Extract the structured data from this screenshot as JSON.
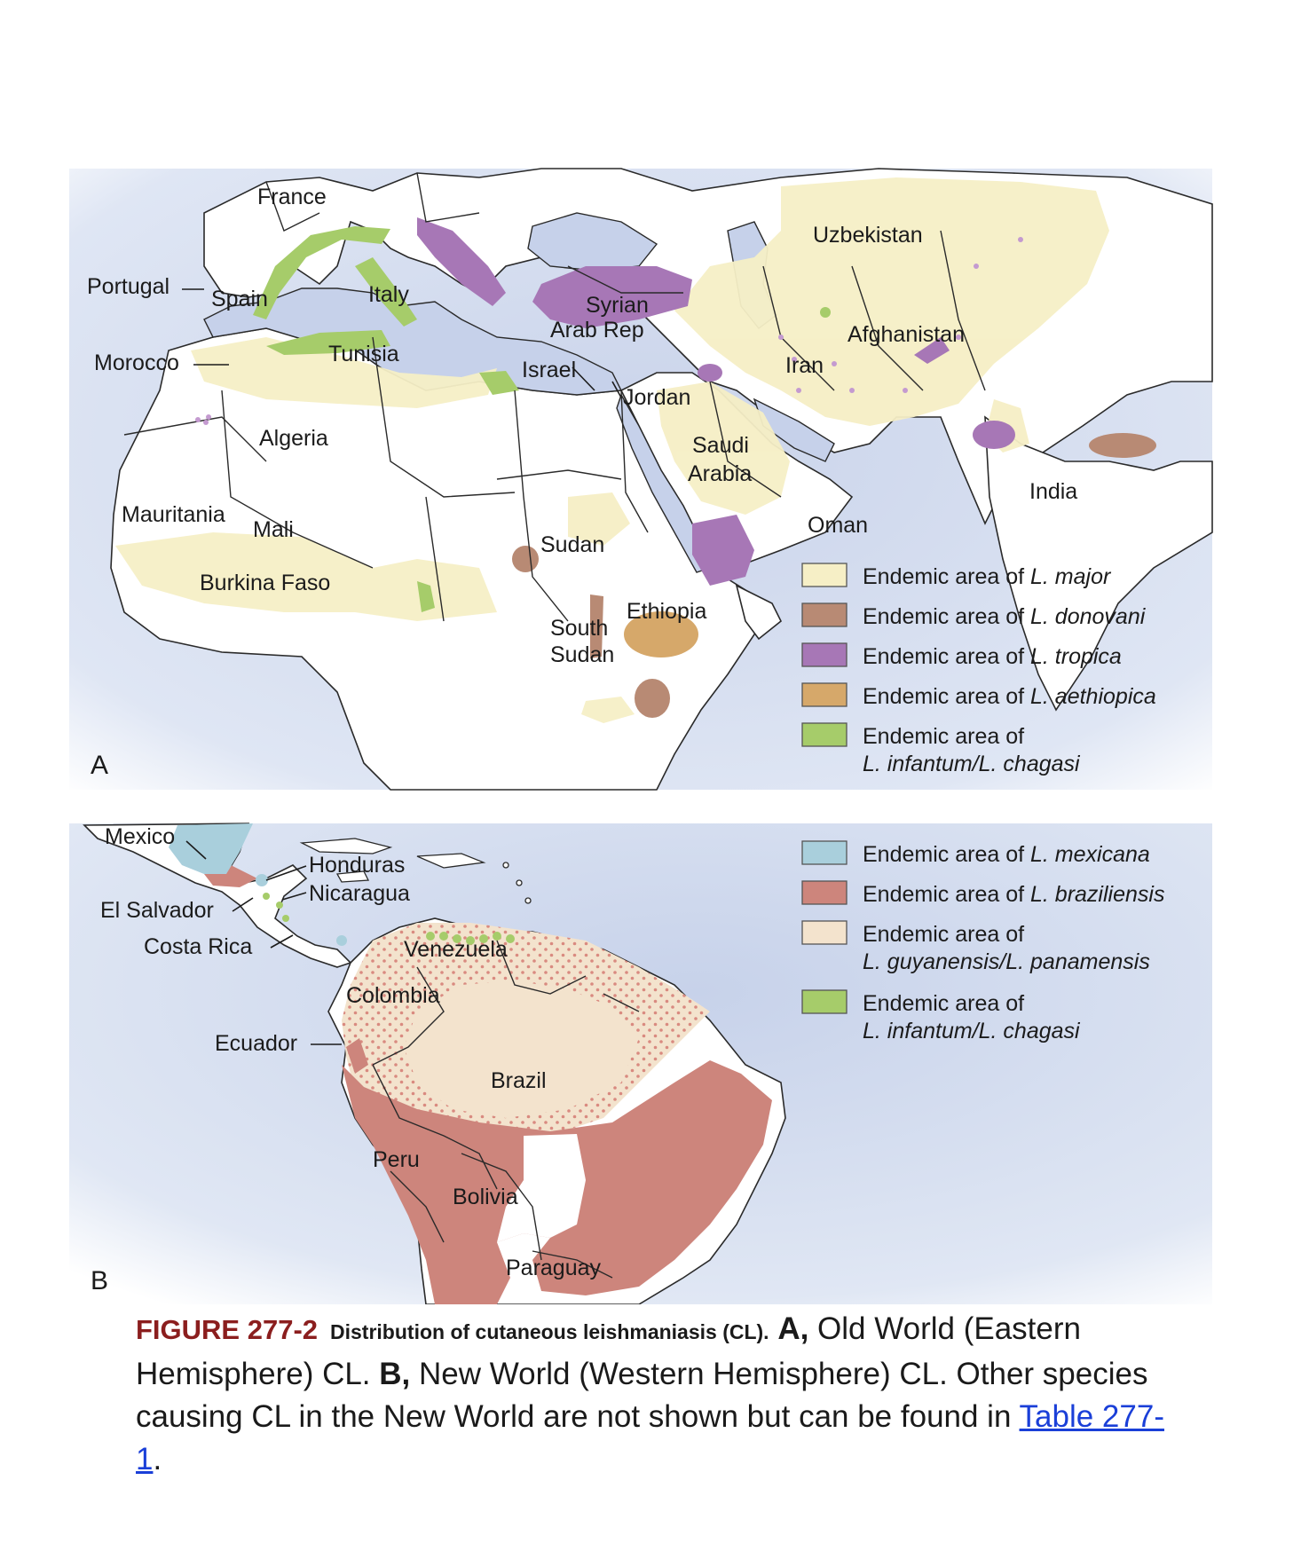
{
  "panel_a": {
    "letter": "A",
    "countries": [
      "France",
      "Portugal",
      "Spain",
      "Italy",
      "Morocco",
      "Tunisia",
      "Algeria",
      "Mauritania",
      "Mali",
      "Burkina Faso",
      "Sudan",
      "South Sudan",
      "Ethiopia",
      "Israel",
      "Jordan",
      "Syrian Arab Rep",
      "Saudi Arabia",
      "Oman",
      "Iran",
      "Afghanistan",
      "Uzbekistan",
      "India"
    ],
    "legend": [
      {
        "prefix": "Endemic area of ",
        "species": "L. major",
        "species2": "",
        "color": "#f6efc6"
      },
      {
        "prefix": "Endemic area of ",
        "species": "L. donovani",
        "species2": "",
        "color": "#b88a74"
      },
      {
        "prefix": "Endemic area of ",
        "species": "L. tropica",
        "species2": "",
        "color": "#a777b6"
      },
      {
        "prefix": "Endemic area of ",
        "species": "L. aethiopica",
        "species2": "",
        "color": "#d6a86a"
      },
      {
        "prefix": "Endemic area of",
        "species": "",
        "species2": "L. infantum/L. chagasi",
        "color": "#a6cc6a"
      }
    ]
  },
  "panel_b": {
    "letter": "B",
    "countries": [
      "Mexico",
      "Honduras",
      "Nicaragua",
      "El Salvador",
      "Costa Rica",
      "Venezuela",
      "Colombia",
      "Ecuador",
      "Brazil",
      "Peru",
      "Bolivia",
      "Paraguay"
    ],
    "legend": [
      {
        "prefix": "Endemic area of ",
        "species": "L. mexicana",
        "species2": "",
        "color": "#a9cfdc"
      },
      {
        "prefix": "Endemic area of ",
        "species": "L. braziliensis",
        "species2": "",
        "color": "#cd857c"
      },
      {
        "prefix": "Endemic area of",
        "species": "",
        "species2": "L. guyanensis/L. panamensis",
        "color": "#f3e3cd"
      },
      {
        "prefix": "Endemic area of",
        "species": "",
        "species2": "L. infantum/L. chagasi",
        "color": "#a6cc6a"
      }
    ]
  },
  "caption": {
    "figure_number": "FIGURE 277-2",
    "title": "Distribution of cutaneous leishmaniasis (CL).",
    "a_label": "A,",
    "a_text": " Old World (Eastern Hemisphere) CL. ",
    "b_label": "B,",
    "b_text": " New World (Western Hemisphere) CL. Other species causing CL in the New World are not shown but can be found in ",
    "link_text": "Table 277-1",
    "end": "."
  }
}
